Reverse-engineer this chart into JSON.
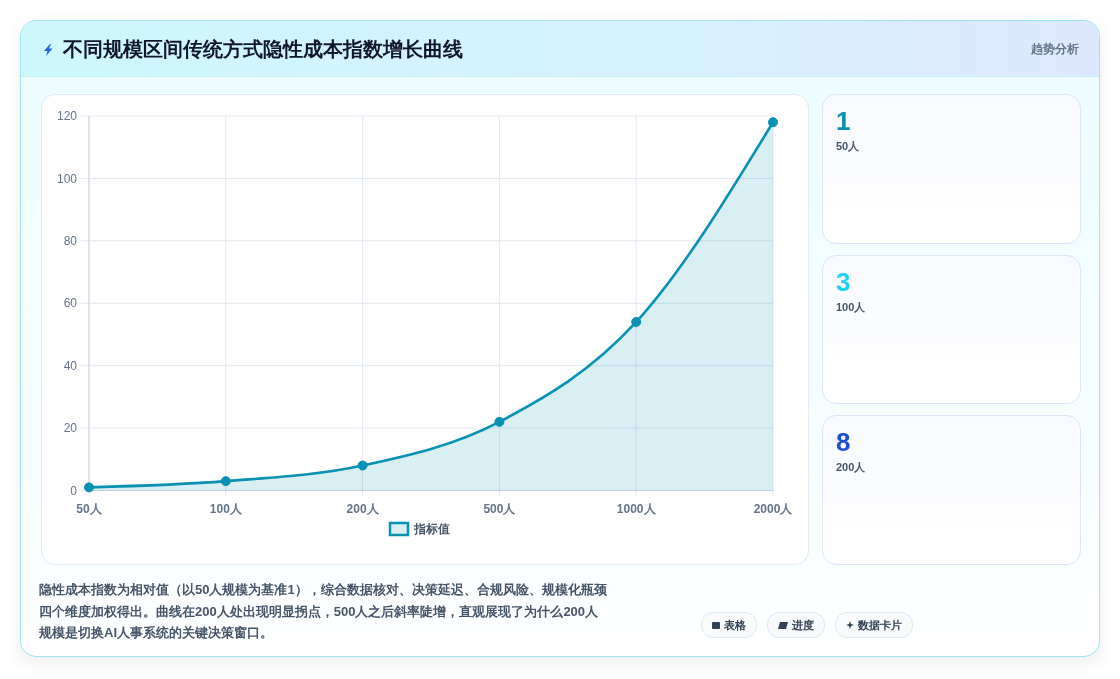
{
  "chart_data": [
    {
      "type": "area",
      "title": "不同规模区间传统方式隐性成本指数增长曲线",
      "categories": [
        "50人",
        "100人",
        "200人",
        "500人",
        "1000人",
        "2000人"
      ],
      "series": [
        {
          "name": "指标值",
          "color": "#0891b2",
          "values": [
            1,
            3,
            8,
            22,
            54,
            118
          ]
        }
      ],
      "ylim": [
        0,
        120
      ],
      "yticks": [
        0,
        20,
        40,
        60,
        80,
        100,
        120
      ],
      "grid": true,
      "legend": "bottom",
      "marker": "circle",
      "annotations": [
        "隐性成本指数为相对值（以50人规模为基准1），综合数据核对、决策延迟、合规风险、规模化瓶颈四个维度加权得出。曲线在200人处出现明显拐点，500人之后斜率陡增，直观展现了为什么200人规模是切换AI人事系统的关键决策窗口。",
        "表格",
        "进度",
        "数据卡片"
      ]
    },
    {
      "type": "other",
      "title": "趋势分析",
      "annotations": [
        "1",
        "50人",
        "3",
        "100人",
        "8",
        "200人"
      ]
    }
  ]
}
